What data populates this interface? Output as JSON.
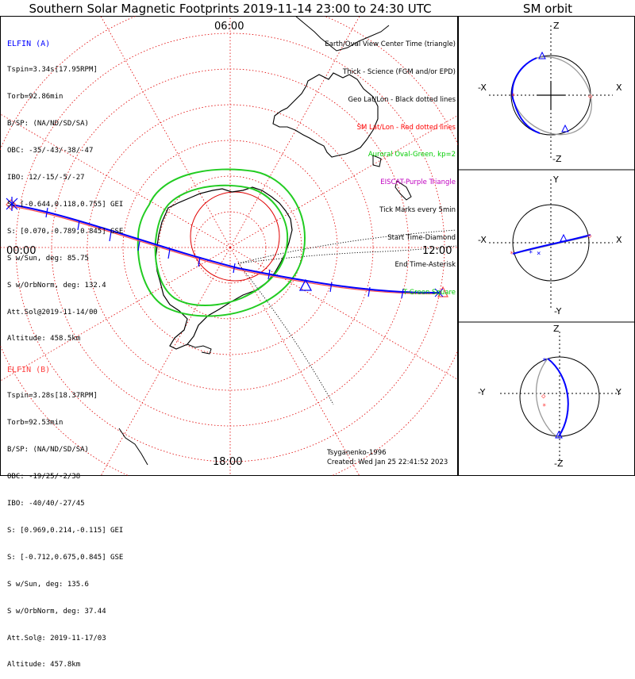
{
  "title": "Southern Solar Magnetic Footprints 2019-11-14 23:00 to 24:30 UTC",
  "orbit_title": "SM orbit",
  "clock_labels": {
    "top": "06:00",
    "left": "00:00",
    "right": "12:00",
    "bottom": "18:00"
  },
  "colors": {
    "elfin_a": "#0000ff",
    "elfin_b": "#ff4040",
    "aurora": "#00cc00",
    "grid": "#dd0000",
    "eiscat": "#c000c0"
  },
  "elfin_a": {
    "name": "ELFIN (A)",
    "lines": [
      "Tspin=3.34s[17.95RPM]",
      "Torb=92.86min",
      "B/SP: (NA/ND/SD/SA)",
      "OBC: -35/-43/-38/-47",
      "IBO: 12/-15/-5/-27",
      "S: [-0.644,0.118,0.755] GEI",
      "S: [0.070,-0.789,0.845] GSE",
      "S w/Sun, deg: 85.75",
      "S w/OrbNorm, deg: 132.4",
      "Att.Sol@2019-11-14/00",
      "Altitude: 458.5km"
    ]
  },
  "elfin_b": {
    "name": "ELFIN (B)",
    "lines": [
      "Tspin=3.28s[18.37RPM]",
      "Torb=92.53min",
      "B/SP: (NA/ND/SD/SA)",
      "OBC: -19/25/-2/38",
      "IBO: -40/40/-27/45",
      "S: [0.969,0.214,-0.115] GEI",
      "S: [-0.712,0.675,0.845] GSE",
      "S w/Sun, deg: 135.6",
      "S w/OrbNorm, deg: 37.44",
      "Att.Sol@: 2019-11-17/03",
      "Altitude: 457.8km"
    ]
  },
  "legend": [
    {
      "text": "Earth/Oval View Center Time (triangle)",
      "color": "#000000"
    },
    {
      "text": "Thick - Science (FGM and/or EPD)",
      "color": "#000000"
    },
    {
      "text": "Geo Lat/Lon - Black dotted lines",
      "color": "#000000"
    },
    {
      "text": "SM Lat/Lon - Red dotted lines",
      "color": "#ff0000"
    },
    {
      "text": "Auroral Oval-Green, kp=2",
      "color": "#00cc00"
    },
    {
      "text": "EISCAT-Purple Triangle",
      "color": "#c000c0"
    },
    {
      "text": "Tick Marks every 5min",
      "color": "#000000"
    },
    {
      "text": "Start Time-Diamond",
      "color": "#000000"
    },
    {
      "text": "End Time-Asterisk",
      "color": "#000000"
    },
    {
      "text": "T-Green Square",
      "color": "#00cc00"
    }
  ],
  "credit": {
    "author": "Tsyganenko-1996",
    "created": "Created: Wed Jan 25 22:41:52 2023"
  },
  "panels": [
    {
      "top": "Z",
      "bottom": "-Z",
      "left": "-X",
      "right": "X"
    },
    {
      "top": "Y",
      "bottom": "-Y",
      "left": "-X",
      "right": "X"
    },
    {
      "top": "Z",
      "bottom": "-Z",
      "left": "-Y",
      "right": "Y"
    }
  ]
}
